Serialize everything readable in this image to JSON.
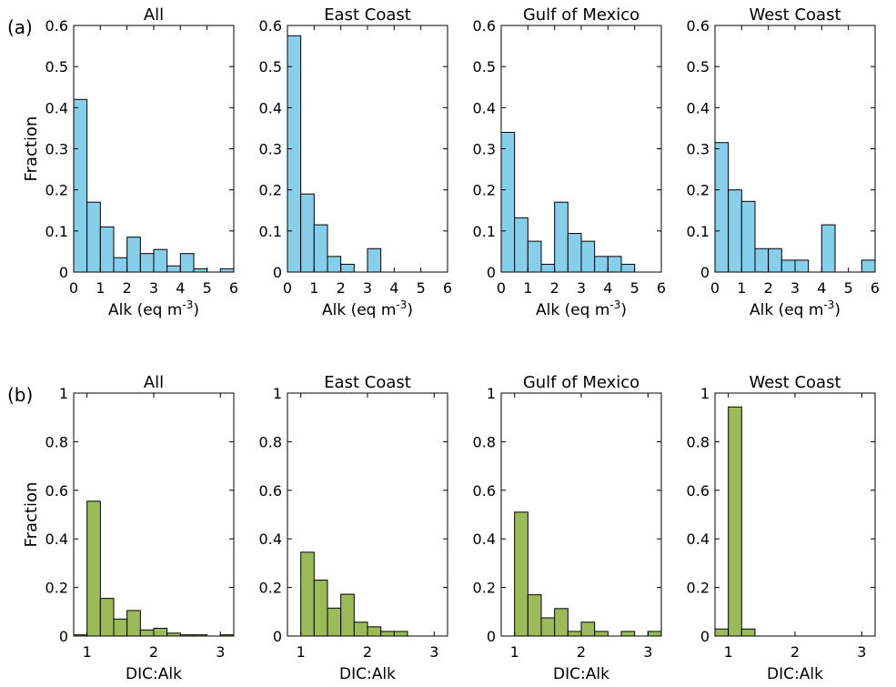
{
  "row_labels": [
    "(a)",
    "(b)"
  ],
  "colors": {
    "alk_fill": "#87CEEB",
    "ratio_fill": "#9BBB59",
    "edge": "#000000"
  },
  "chart_data": [
    {
      "type": "bar",
      "title": "All",
      "xlabel": "Alk (eq m",
      "xlabel_sup": "-3",
      "xlabel_end": ")",
      "ylabel": "Fraction",
      "xlim": [
        0,
        6
      ],
      "ylim": [
        0,
        0.6
      ],
      "xticks": [
        0,
        1,
        2,
        3,
        4,
        5,
        6
      ],
      "yticks": [
        0,
        0.1,
        0.2,
        0.3,
        0.4,
        0.5,
        0.6
      ],
      "bin_edges": [
        0,
        0.5,
        1,
        1.5,
        2,
        2.5,
        3,
        3.5,
        4,
        4.5,
        5,
        5.5,
        6
      ],
      "values": [
        0.42,
        0.17,
        0.11,
        0.035,
        0.085,
        0.045,
        0.055,
        0.015,
        0.045,
        0.008,
        0,
        0.008
      ]
    },
    {
      "type": "bar",
      "title": "East Coast",
      "xlabel": "Alk (eq m",
      "xlabel_sup": "-3",
      "xlabel_end": ")",
      "ylabel": "",
      "xlim": [
        0,
        6
      ],
      "ylim": [
        0,
        0.6
      ],
      "xticks": [
        0,
        1,
        2,
        3,
        4,
        5,
        6
      ],
      "yticks": [
        0,
        0.1,
        0.2,
        0.3,
        0.4,
        0.5,
        0.6
      ],
      "bin_edges": [
        0,
        0.5,
        1,
        1.5,
        2,
        2.5,
        3,
        3.5,
        4,
        4.5,
        5,
        5.5,
        6
      ],
      "values": [
        0.575,
        0.19,
        0.115,
        0.038,
        0.019,
        0,
        0.057,
        0,
        0,
        0,
        0,
        0
      ]
    },
    {
      "type": "bar",
      "title": "Gulf of Mexico",
      "xlabel": "Alk (eq m",
      "xlabel_sup": "-3",
      "xlabel_end": ")",
      "ylabel": "",
      "xlim": [
        0,
        6
      ],
      "ylim": [
        0,
        0.6
      ],
      "xticks": [
        0,
        1,
        2,
        3,
        4,
        5,
        6
      ],
      "yticks": [
        0,
        0.1,
        0.2,
        0.3,
        0.4,
        0.5,
        0.6
      ],
      "bin_edges": [
        0,
        0.5,
        1,
        1.5,
        2,
        2.5,
        3,
        3.5,
        4,
        4.5,
        5,
        5.5,
        6
      ],
      "values": [
        0.34,
        0.132,
        0.075,
        0.019,
        0.17,
        0.094,
        0.075,
        0.038,
        0.038,
        0.019,
        0,
        0
      ]
    },
    {
      "type": "bar",
      "title": "West Coast",
      "xlabel": "Alk (eq m",
      "xlabel_sup": "-3",
      "xlabel_end": ")",
      "ylabel": "",
      "xlim": [
        0,
        6
      ],
      "ylim": [
        0,
        0.6
      ],
      "xticks": [
        0,
        1,
        2,
        3,
        4,
        5,
        6
      ],
      "yticks": [
        0,
        0.1,
        0.2,
        0.3,
        0.4,
        0.5,
        0.6
      ],
      "bin_edges": [
        0,
        0.5,
        1,
        1.5,
        2,
        2.5,
        3,
        3.5,
        4,
        4.5,
        5,
        5.5,
        6
      ],
      "values": [
        0.315,
        0.2,
        0.172,
        0.057,
        0.057,
        0.029,
        0.029,
        0,
        0.115,
        0,
        0,
        0.029
      ]
    },
    {
      "type": "bar",
      "title": "All",
      "xlabel": "DIC:Alk",
      "xlabel_sup": "",
      "xlabel_end": "",
      "ylabel": "Fraction",
      "xlim": [
        0.8,
        3.2
      ],
      "ylim": [
        0,
        1
      ],
      "xticks": [
        1,
        2,
        3
      ],
      "yticks": [
        0,
        0.2,
        0.4,
        0.6,
        0.8,
        1
      ],
      "bin_edges": [
        0.8,
        1,
        1.2,
        1.4,
        1.6,
        1.8,
        2,
        2.2,
        2.4,
        2.6,
        2.8,
        3,
        3.2
      ],
      "values": [
        0.005,
        0.555,
        0.155,
        0.07,
        0.105,
        0.025,
        0.032,
        0.012,
        0.005,
        0.005,
        0,
        0.005
      ]
    },
    {
      "type": "bar",
      "title": "East Coast",
      "xlabel": "DIC:Alk",
      "xlabel_sup": "",
      "xlabel_end": "",
      "ylabel": "",
      "xlim": [
        0.8,
        3.2
      ],
      "ylim": [
        0,
        1
      ],
      "xticks": [
        1,
        2,
        3
      ],
      "yticks": [
        0,
        0.2,
        0.4,
        0.6,
        0.8,
        1
      ],
      "bin_edges": [
        0.8,
        1,
        1.2,
        1.4,
        1.6,
        1.8,
        2,
        2.2,
        2.4,
        2.6,
        2.8,
        3,
        3.2
      ],
      "values": [
        0,
        0.345,
        0.23,
        0.115,
        0.172,
        0.057,
        0.038,
        0.019,
        0.019,
        0,
        0,
        0
      ]
    },
    {
      "type": "bar",
      "title": "Gulf of Mexico",
      "xlabel": "DIC:Alk",
      "xlabel_sup": "",
      "xlabel_end": "",
      "ylabel": "",
      "xlim": [
        0.8,
        3.2
      ],
      "ylim": [
        0,
        1
      ],
      "xticks": [
        1,
        2,
        3
      ],
      "yticks": [
        0,
        0.2,
        0.4,
        0.6,
        0.8,
        1
      ],
      "bin_edges": [
        0.8,
        1,
        1.2,
        1.4,
        1.6,
        1.8,
        2,
        2.2,
        2.4,
        2.6,
        2.8,
        3,
        3.2
      ],
      "values": [
        0,
        0.51,
        0.17,
        0.075,
        0.113,
        0.019,
        0.057,
        0.019,
        0,
        0.019,
        0,
        0.019
      ]
    },
    {
      "type": "bar",
      "title": "West Coast",
      "xlabel": "DIC:Alk",
      "xlabel_sup": "",
      "xlabel_end": "",
      "ylabel": "",
      "xlim": [
        0.8,
        3.2
      ],
      "ylim": [
        0,
        1
      ],
      "xticks": [
        1,
        2,
        3
      ],
      "yticks": [
        0,
        0.2,
        0.4,
        0.6,
        0.8,
        1
      ],
      "bin_edges": [
        0.8,
        1,
        1.2,
        1.4,
        1.6,
        1.8,
        2,
        2.2,
        2.4,
        2.6,
        2.8,
        3,
        3.2
      ],
      "values": [
        0.029,
        0.943,
        0.029,
        0,
        0,
        0,
        0,
        0,
        0,
        0,
        0,
        0
      ]
    }
  ]
}
